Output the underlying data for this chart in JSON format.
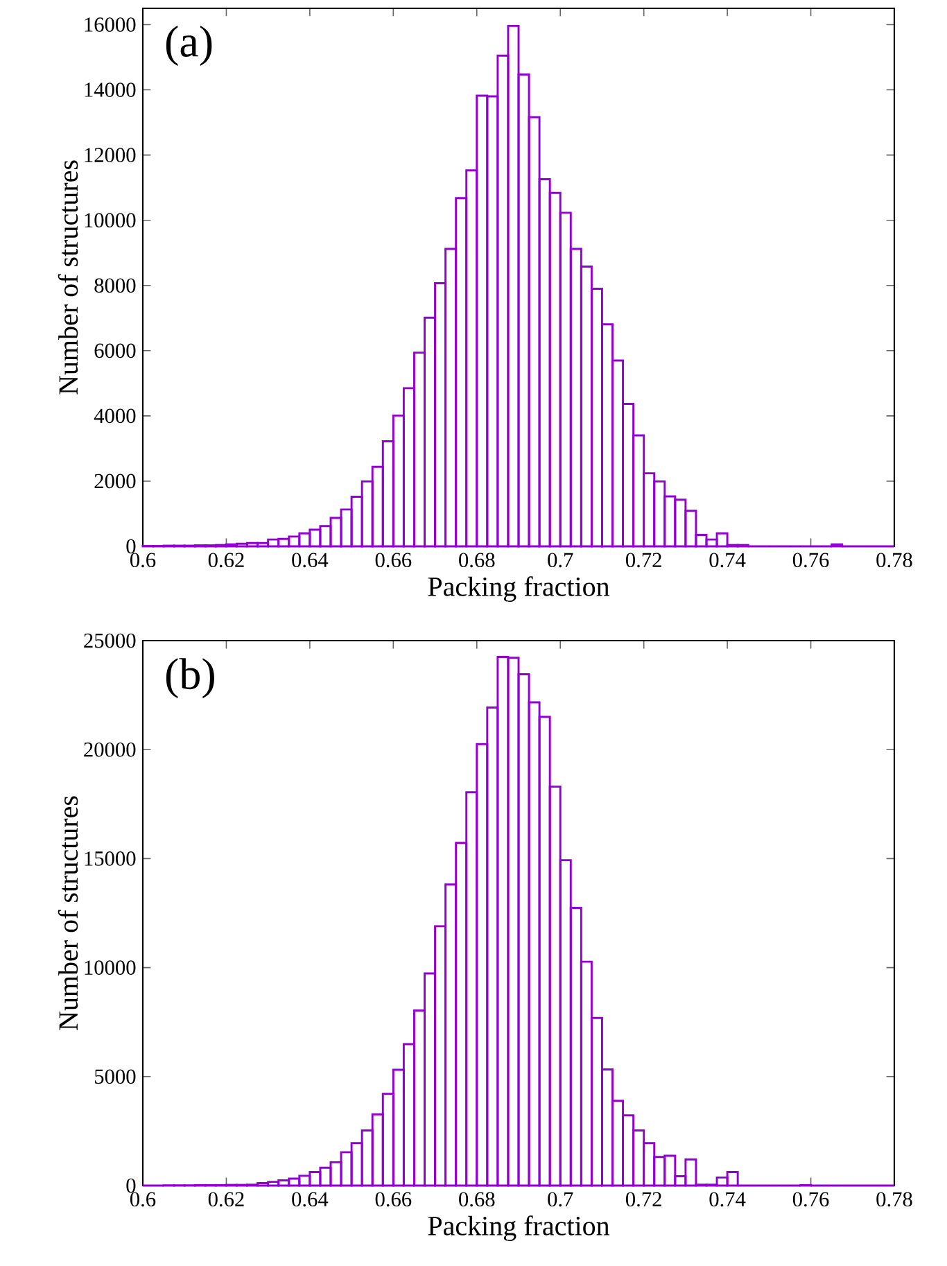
{
  "chart_data": [
    {
      "type": "histogram",
      "color": "#9400d3",
      "xlabel": "Packing fraction",
      "ylabel": "Number of structures",
      "annotations": [
        "(a)"
      ],
      "bins": [
        0.6,
        0.6025,
        0.605,
        0.6075,
        0.61,
        0.6125,
        0.615,
        0.6175,
        0.62,
        0.6225,
        0.625,
        0.6275,
        0.63,
        0.6325,
        0.635,
        0.6375,
        0.64,
        0.6425,
        0.645,
        0.6475,
        0.65,
        0.6525,
        0.655,
        0.6575,
        0.66,
        0.6625,
        0.665,
        0.6675,
        0.67,
        0.6725,
        0.675,
        0.6775,
        0.68,
        0.6825,
        0.685,
        0.6875,
        0.69,
        0.6925,
        0.695,
        0.6975,
        0.7,
        0.7025,
        0.705,
        0.7075,
        0.71,
        0.7125,
        0.715,
        0.7175,
        0.72,
        0.7225,
        0.725,
        0.7275,
        0.73,
        0.7325,
        0.735,
        0.7375,
        0.74,
        0.7425,
        0.745,
        0.7475,
        0.75,
        0.7525,
        0.755,
        0.7575,
        0.76,
        0.7625,
        0.765,
        0.7675,
        0.77,
        0.7725,
        0.775,
        0.7775,
        0.78
      ],
      "values": [
        10,
        10,
        20,
        20,
        20,
        30,
        30,
        40,
        60,
        80,
        100,
        100,
        210,
        230,
        300,
        400,
        510,
        620,
        870,
        1130,
        1520,
        1990,
        2440,
        3220,
        4010,
        4850,
        5940,
        7010,
        8070,
        9120,
        10680,
        11530,
        13820,
        13800,
        15050,
        15960,
        14470,
        13160,
        11260,
        10840,
        10230,
        9120,
        8580,
        7900,
        6810,
        5700,
        4370,
        3400,
        2240,
        1990,
        1530,
        1430,
        1090,
        350,
        210,
        400,
        40,
        40,
        0,
        0,
        0,
        0,
        0,
        0,
        0,
        0,
        60,
        0,
        0,
        0,
        0,
        0
      ],
      "xlim": [
        0.6,
        0.78
      ],
      "ylim": [
        0,
        16500
      ],
      "xticks": [
        0.6,
        0.62,
        0.64,
        0.66,
        0.68,
        0.7,
        0.72,
        0.74,
        0.76,
        0.78
      ],
      "yticks": [
        0,
        2000,
        4000,
        6000,
        8000,
        10000,
        12000,
        14000,
        16000
      ]
    },
    {
      "type": "histogram",
      "color": "#9400d3",
      "xlabel": "Packing fraction",
      "ylabel": "Number of structures",
      "annotations": [
        "(b)"
      ],
      "bins": [
        0.6,
        0.6025,
        0.605,
        0.6075,
        0.61,
        0.6125,
        0.615,
        0.6175,
        0.62,
        0.6225,
        0.625,
        0.6275,
        0.63,
        0.6325,
        0.635,
        0.6375,
        0.64,
        0.6425,
        0.645,
        0.6475,
        0.65,
        0.6525,
        0.655,
        0.6575,
        0.66,
        0.6625,
        0.665,
        0.6675,
        0.67,
        0.6725,
        0.675,
        0.6775,
        0.68,
        0.6825,
        0.685,
        0.6875,
        0.69,
        0.6925,
        0.695,
        0.6975,
        0.7,
        0.7025,
        0.705,
        0.7075,
        0.71,
        0.7125,
        0.715,
        0.7175,
        0.72,
        0.7225,
        0.725,
        0.7275,
        0.73,
        0.7325,
        0.735,
        0.7375,
        0.74,
        0.7425,
        0.745,
        0.7475,
        0.75,
        0.7525,
        0.755,
        0.7575,
        0.76,
        0.7625,
        0.765,
        0.7675,
        0.77,
        0.7725,
        0.775,
        0.7775,
        0.78
      ],
      "values": [
        0,
        0,
        10,
        10,
        10,
        20,
        20,
        20,
        30,
        30,
        40,
        110,
        170,
        240,
        320,
        450,
        620,
        820,
        1070,
        1530,
        1950,
        2530,
        3270,
        4210,
        5310,
        6490,
        8030,
        9730,
        11900,
        13810,
        15720,
        18040,
        20250,
        21930,
        24250,
        24210,
        23460,
        22170,
        21500,
        18300,
        14930,
        12740,
        10270,
        7690,
        5330,
        3890,
        3220,
        2530,
        1950,
        1310,
        1370,
        430,
        1200,
        40,
        40,
        370,
        620,
        0,
        0,
        0,
        0,
        0,
        0,
        20,
        0,
        0,
        0,
        0,
        0,
        0,
        0,
        0
      ],
      "xlim": [
        0.6,
        0.78
      ],
      "ylim": [
        0,
        25000
      ],
      "xticks": [
        0.6,
        0.62,
        0.64,
        0.66,
        0.68,
        0.7,
        0.72,
        0.74,
        0.76,
        0.78
      ],
      "yticks": [
        0,
        5000,
        10000,
        15000,
        20000,
        25000
      ]
    }
  ]
}
